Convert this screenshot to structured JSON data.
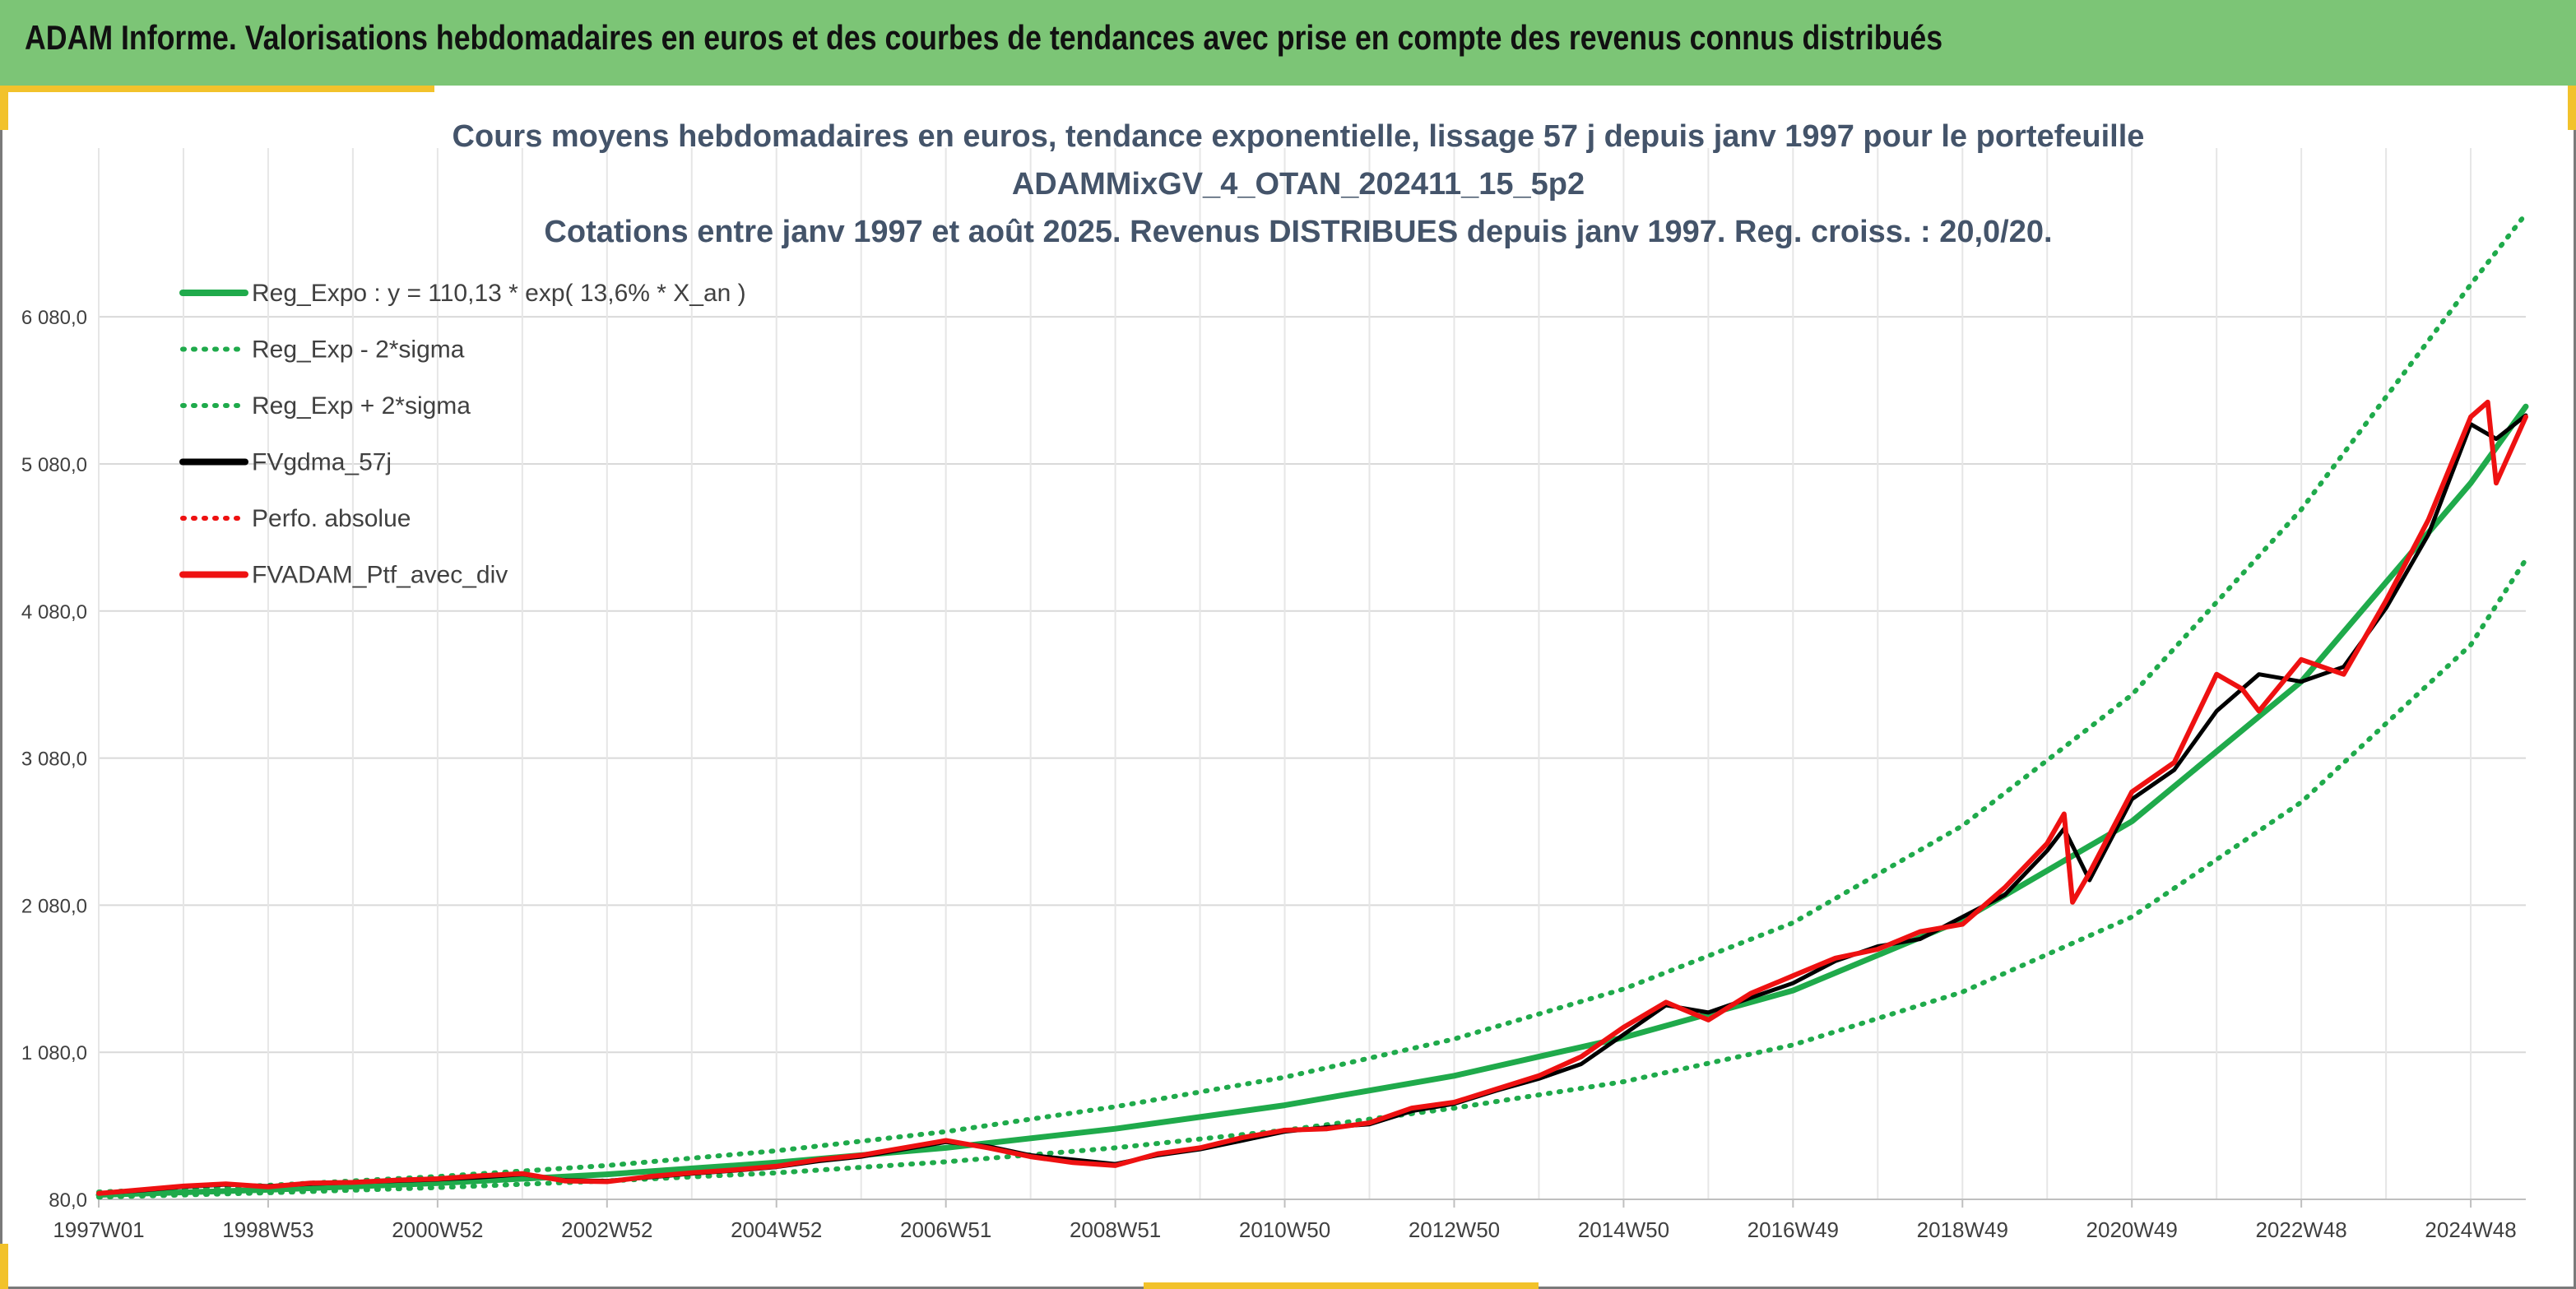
{
  "header": {
    "title": "ADAM Informe. Valorisations hebdomadaires en euros et des courbes de tendances avec prise en compte des revenus connus distribués"
  },
  "colors": {
    "banner": "#7cc576",
    "accent_gold": "#f2c22b",
    "green_line": "#1faa4b",
    "black_line": "#000000",
    "red_line": "#ee1111"
  },
  "chart_data": {
    "type": "line",
    "title_lines": [
      "Cours moyens hebdomadaires en euros, tendance exponentielle, lissage 57 j depuis janv 1997 pour le portefeuille",
      "ADAMMixGV_4_OTAN_202411_15_5p2",
      "Cotations entre janv 1997 et août 2025. Revenus DISTRIBUES depuis janv 1997. Reg. croiss. : 20,0/20."
    ],
    "xlabel": "",
    "ylabel": "",
    "ylim": [
      80,
      6780
    ],
    "y_ticks": [
      80,
      1080,
      2080,
      3080,
      4080,
      5080,
      6080
    ],
    "y_tick_labels": [
      "80,0",
      "1 080,0",
      "2 080,0",
      "3 080,0",
      "4 080,0",
      "5 080,0",
      "6 080,0"
    ],
    "xlim": [
      1997.0,
      2025.65
    ],
    "x_tick_positions": [
      1997.0,
      1999.0,
      2001.0,
      2003.0,
      2005.0,
      2007.0,
      2009.0,
      2011.0,
      2013.0,
      2015.0,
      2017.0,
      2019.0,
      2021.0,
      2023.0,
      2025.0
    ],
    "x_tick_labels": [
      "1997W01",
      "1998W53",
      "2000W52",
      "2002W52",
      "2004W52",
      "2006W51",
      "2008W51",
      "2010W50",
      "2012W50",
      "2014W50",
      "2016W49",
      "2018W49",
      "2020W49",
      "2022W48",
      "2024W48"
    ],
    "grid": true,
    "legend_position": "top-left",
    "legend": [
      {
        "label": "Reg_Expo : y = 110,13 * exp( 13,6% *  X_an )",
        "style": "solid",
        "color": "#1faa4b"
      },
      {
        "label": "Reg_Exp - 2*sigma",
        "style": "dotted",
        "color": "#1faa4b"
      },
      {
        "label": "Reg_Exp + 2*sigma",
        "style": "dotted",
        "color": "#1faa4b"
      },
      {
        "label": "FVgdma_57j",
        "style": "solid",
        "color": "#000000"
      },
      {
        "label": "Perfo. absolue",
        "style": "dotted",
        "color": "#ee1111"
      },
      {
        "label": "FVADAM_Ptf_avec_div",
        "style": "solid",
        "color": "#ee1111"
      }
    ],
    "series": [
      {
        "key": "reg_expo",
        "x": [
          1997.0,
          1999.0,
          2001.0,
          2003.0,
          2005.0,
          2007.0,
          2009.0,
          2011.0,
          2013.0,
          2015.0,
          2017.0,
          2019.0,
          2021.0,
          2023.0,
          2025.0,
          2025.65
        ],
        "values": [
          110,
          145,
          190,
          250,
          330,
          430,
          560,
          720,
          920,
          1180,
          1500,
          1980,
          2650,
          3600,
          4950,
          5470
        ]
      },
      {
        "key": "reg_minus",
        "x": [
          1997.0,
          1999.0,
          2001.0,
          2003.0,
          2005.0,
          2007.0,
          2009.0,
          2011.0,
          2013.0,
          2015.0,
          2017.0,
          2019.0,
          2021.0,
          2023.0,
          2025.0,
          2025.65
        ],
        "values": [
          95,
          125,
          160,
          205,
          260,
          335,
          430,
          550,
          700,
          880,
          1130,
          1490,
          2000,
          2780,
          3850,
          4430
        ]
      },
      {
        "key": "reg_plus",
        "x": [
          1997.0,
          1999.0,
          2001.0,
          2003.0,
          2005.0,
          2007.0,
          2009.0,
          2011.0,
          2013.0,
          2015.0,
          2017.0,
          2019.0,
          2021.0,
          2023.0,
          2025.0,
          2025.65
        ],
        "values": [
          130,
          175,
          235,
          310,
          410,
          540,
          710,
          910,
          1170,
          1510,
          1960,
          2620,
          3510,
          4770,
          6300,
          6780
        ]
      },
      {
        "key": "fvgdma",
        "x": [
          1997.0,
          1997.5,
          1998.0,
          1998.5,
          1999.0,
          1999.5,
          2000.0,
          2000.5,
          2001.0,
          2001.5,
          2002.0,
          2002.5,
          2003.0,
          2003.5,
          2004.0,
          2004.5,
          2005.0,
          2005.5,
          2006.0,
          2006.5,
          2007.0,
          2007.5,
          2008.0,
          2008.5,
          2009.0,
          2009.5,
          2010.0,
          2010.5,
          2011.0,
          2011.5,
          2012.0,
          2012.5,
          2013.0,
          2013.5,
          2014.0,
          2014.5,
          2015.0,
          2015.5,
          2016.0,
          2016.5,
          2017.0,
          2017.5,
          2018.0,
          2018.5,
          2019.0,
          2019.5,
          2020.0,
          2020.2,
          2020.5,
          2021.0,
          2021.5,
          2022.0,
          2022.5,
          2023.0,
          2023.5,
          2024.0,
          2024.5,
          2025.0,
          2025.3,
          2025.65
        ],
        "values": [
          120,
          140,
          165,
          180,
          170,
          185,
          195,
          205,
          215,
          230,
          250,
          210,
          205,
          230,
          255,
          275,
          300,
          340,
          370,
          420,
          470,
          440,
          380,
          350,
          320,
          380,
          420,
          480,
          540,
          570,
          590,
          680,
          730,
          820,
          900,
          1000,
          1200,
          1400,
          1350,
          1450,
          1550,
          1700,
          1800,
          1850,
          2000,
          2150,
          2450,
          2600,
          2250,
          2800,
          3000,
          3400,
          3650,
          3600,
          3700,
          4100,
          4600,
          5350,
          5250,
          5410
        ]
      },
      {
        "key": "fvadam",
        "x": [
          1997.0,
          1997.5,
          1998.0,
          1998.5,
          1999.0,
          1999.5,
          2000.0,
          2000.5,
          2001.0,
          2001.5,
          2002.0,
          2002.5,
          2003.0,
          2003.5,
          2004.0,
          2004.5,
          2005.0,
          2005.5,
          2006.0,
          2006.5,
          2007.0,
          2007.5,
          2008.0,
          2008.5,
          2009.0,
          2009.5,
          2010.0,
          2010.5,
          2011.0,
          2011.5,
          2012.0,
          2012.5,
          2013.0,
          2013.5,
          2014.0,
          2014.5,
          2015.0,
          2015.5,
          2016.0,
          2016.5,
          2017.0,
          2017.5,
          2018.0,
          2018.5,
          2019.0,
          2019.5,
          2020.0,
          2020.2,
          2020.3,
          2020.5,
          2021.0,
          2021.5,
          2022.0,
          2022.3,
          2022.5,
          2023.0,
          2023.5,
          2024.0,
          2024.5,
          2025.0,
          2025.2,
          2025.3,
          2025.65
        ],
        "values": [
          120,
          145,
          170,
          185,
          165,
          190,
          195,
          210,
          220,
          240,
          255,
          205,
          200,
          235,
          260,
          280,
          305,
          350,
          380,
          430,
          480,
          430,
          370,
          330,
          310,
          390,
          430,
          500,
          550,
          560,
          600,
          700,
          740,
          830,
          920,
          1050,
          1250,
          1420,
          1300,
          1480,
          1600,
          1720,
          1780,
          1900,
          1950,
          2200,
          2500,
          2700,
          2100,
          2300,
          2850,
          3050,
          3650,
          3550,
          3400,
          3750,
          3650,
          4150,
          4700,
          5400,
          5500,
          4950,
          5400
        ]
      }
    ]
  }
}
